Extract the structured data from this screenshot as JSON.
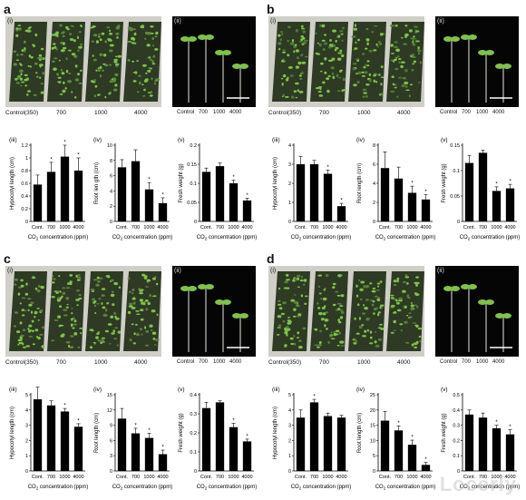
{
  "panels": [
    {
      "letter": "a",
      "photo_labels": [
        "(i)",
        "(ii)"
      ],
      "tray_labels": [
        "Control(350)",
        "700",
        "1000",
        "4000"
      ],
      "seedling_labels": [
        "Control",
        "700",
        "1000",
        "4000"
      ],
      "tray_tone": "#5a8a3a",
      "charts": [
        {
          "sub": "(iii)",
          "ylabel": "Hypocotyl length (cm)",
          "ticks": [
            0,
            0.2,
            0.4,
            0.6,
            0.8,
            1.0,
            1.2
          ],
          "ymax": 1.2,
          "categories": [
            "Cont.",
            "700",
            "1000",
            "4000"
          ],
          "values": [
            0.58,
            0.78,
            1.02,
            0.8
          ],
          "errors": [
            0.15,
            0.15,
            0.18,
            0.2
          ],
          "sig": [
            "",
            "*",
            "*",
            "*"
          ]
        },
        {
          "sub": "(iv)",
          "ylabel": "Root len gth (cm)",
          "ticks": [
            0,
            2,
            4,
            6,
            8,
            10
          ],
          "ymax": 10,
          "categories": [
            "Cont.",
            "700",
            "1000",
            "4000"
          ],
          "values": [
            7.1,
            7.9,
            4.2,
            2.4
          ],
          "errors": [
            1.0,
            1.5,
            0.9,
            0.7
          ],
          "sig": [
            "",
            "",
            "*",
            "*"
          ]
        },
        {
          "sub": "(v)",
          "ylabel": "Fresh weight (g)",
          "ticks": [
            0,
            0.05,
            0.1,
            0.15,
            0.2
          ],
          "ymax": 0.2,
          "categories": [
            "Cont.",
            "700",
            "1000",
            "4000"
          ],
          "values": [
            0.13,
            0.145,
            0.1,
            0.055
          ],
          "errors": [
            0.01,
            0.008,
            0.008,
            0.006
          ],
          "sig": [
            "",
            "",
            "*",
            "*"
          ]
        }
      ]
    },
    {
      "letter": "b",
      "photo_labels": [
        "(i)",
        "(ii)"
      ],
      "tray_labels": [
        "Control(350)",
        "700",
        "1000",
        "4000"
      ],
      "seedling_labels": [
        "Control",
        "700",
        "1000",
        "4000"
      ],
      "tray_tone": "#4f7a36",
      "charts": [
        {
          "sub": "(iii)",
          "ylabel": "Hypocotyl length (cm)",
          "ticks": [
            0,
            1,
            2,
            3,
            4
          ],
          "ymax": 4,
          "categories": [
            "Cont.",
            "700",
            "1000",
            "4000"
          ],
          "values": [
            3.0,
            3.0,
            2.5,
            0.8
          ],
          "errors": [
            0.4,
            0.2,
            0.2,
            0.15
          ],
          "sig": [
            "",
            "",
            "*",
            "*"
          ]
        },
        {
          "sub": "(iv)",
          "ylabel": "Root length (cm)",
          "ticks": [
            0,
            2,
            4,
            6,
            8
          ],
          "ymax": 8,
          "categories": [
            "Cont.",
            "700",
            "1000",
            "4000"
          ],
          "values": [
            5.6,
            4.5,
            3.0,
            2.3
          ],
          "errors": [
            1.7,
            1.2,
            0.7,
            0.5
          ],
          "sig": [
            "",
            "",
            "*",
            "*"
          ]
        },
        {
          "sub": "(v)",
          "ylabel": "Fresh weight (g)",
          "ticks": [
            0,
            0.05,
            0.1,
            0.15
          ],
          "ymax": 0.15,
          "categories": [
            "Cont.",
            "700",
            "1000",
            "4000"
          ],
          "values": [
            0.115,
            0.135,
            0.06,
            0.065
          ],
          "errors": [
            0.015,
            0.005,
            0.008,
            0.008
          ],
          "sig": [
            "",
            "",
            "*",
            "*"
          ]
        }
      ]
    },
    {
      "letter": "c",
      "photo_labels": [
        "(i)",
        "(ii)"
      ],
      "tray_labels": [
        "Control(350)",
        "700",
        "1000",
        "4000"
      ],
      "seedling_labels": [
        "Control",
        "700",
        "1000",
        "4000"
      ],
      "tray_tone": "#627a3e",
      "charts": [
        {
          "sub": "(iii)",
          "ylabel": "Hypocotyl length (cm)",
          "ticks": [
            0,
            1.0,
            2.0,
            3.0,
            4.0,
            5.0
          ],
          "ymax": 5,
          "categories": [
            "Cont.",
            "700",
            "1000",
            "4000"
          ],
          "values": [
            4.7,
            4.3,
            3.9,
            2.9
          ],
          "errors": [
            0.8,
            0.3,
            0.2,
            0.2
          ],
          "sig": [
            "",
            "",
            "*",
            "*"
          ]
        },
        {
          "sub": "(iv)",
          "ylabel": "Root length (cm)",
          "ticks": [
            0,
            3,
            6,
            9,
            12,
            15
          ],
          "ymax": 15,
          "categories": [
            "Cont.",
            "700",
            "1000",
            "4000"
          ],
          "values": [
            10.3,
            7.4,
            6.5,
            3.3
          ],
          "errors": [
            2.0,
            1.0,
            0.9,
            0.8
          ],
          "sig": [
            "",
            "*",
            "*",
            "*"
          ]
        },
        {
          "sub": "(v)",
          "ylabel": "Fresh weight (g)",
          "ticks": [
            0,
            0.1,
            0.2,
            0.3,
            0.4
          ],
          "ymax": 0.4,
          "categories": [
            "Cont.",
            "700",
            "1000",
            "4000"
          ],
          "values": [
            0.33,
            0.36,
            0.23,
            0.155
          ],
          "errors": [
            0.03,
            0.008,
            0.02,
            0.012
          ],
          "sig": [
            "",
            "",
            "*",
            "*"
          ]
        }
      ]
    },
    {
      "letter": "d",
      "photo_labels": [
        "(i)",
        "(ii)"
      ],
      "tray_labels": [
        "Control(350)",
        "700",
        "1000",
        "4000"
      ],
      "seedling_labels": [
        "Control",
        "700",
        "1000",
        "4000"
      ],
      "tray_tone": "#587d3a",
      "charts": [
        {
          "sub": "(iii)",
          "ylabel": "Hypocotyl length (cm)",
          "ticks": [
            0,
            1,
            2,
            3,
            4,
            5
          ],
          "ymax": 5,
          "categories": [
            "Cont.",
            "700",
            "1000",
            "4000"
          ],
          "values": [
            3.5,
            4.5,
            3.6,
            3.5
          ],
          "errors": [
            0.5,
            0.2,
            0.2,
            0.15
          ],
          "sig": [
            "",
            "*",
            "",
            ""
          ]
        },
        {
          "sub": "(iv)",
          "ylabel": "Root length (cm)",
          "ticks": [
            0,
            5,
            10,
            15,
            20,
            25
          ],
          "ymax": 25,
          "categories": [
            "Cont.",
            "700",
            "1000",
            "4000"
          ],
          "values": [
            16.5,
            13.3,
            8.6,
            2.0
          ],
          "errors": [
            3.0,
            1.5,
            1.5,
            0.8
          ],
          "sig": [
            "",
            "*",
            "*",
            "*"
          ]
        },
        {
          "sub": "(v)",
          "ylabel": "Fresh weight (g)",
          "ticks": [
            0,
            0.1,
            0.2,
            0.3,
            0.4,
            0.5
          ],
          "ymax": 0.5,
          "categories": [
            "Cont.",
            "700",
            "1000",
            "4000"
          ],
          "values": [
            0.37,
            0.35,
            0.28,
            0.24
          ],
          "errors": [
            0.03,
            0.03,
            0.02,
            0.03
          ],
          "sig": [
            "",
            "",
            "*",
            "*"
          ]
        }
      ]
    }
  ],
  "xlabel_prefix": "CO",
  "xlabel_sub": "2",
  "xlabel_suffix": " concentration (ppm)",
  "watermark": "Locerly",
  "colors": {
    "bar": "#000000",
    "photo_bg": "#050505",
    "leaf": "#7fc24a",
    "tray": "#2e3a24"
  }
}
